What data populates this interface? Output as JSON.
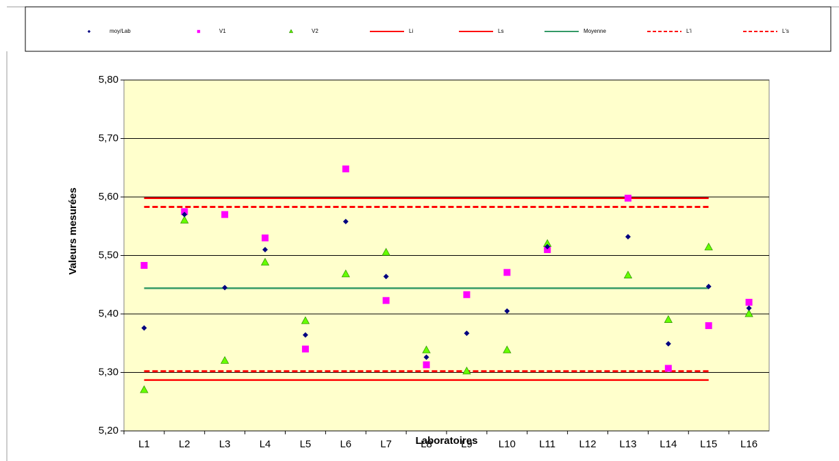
{
  "chart_data": {
    "type": "scatter",
    "x_label": "Laboratoires",
    "y_label": "Valeurs mesurées",
    "categories": [
      "L1",
      "L2",
      "L3",
      "L4",
      "L5",
      "L6",
      "L7",
      "L8",
      "L9",
      "L10",
      "L11",
      "L12",
      "L13",
      "L14",
      "L15",
      "L16"
    ],
    "series": [
      {
        "name": "moy/Lab",
        "color": "#000080",
        "marker": "diamond",
        "values": [
          5.376,
          5.57,
          5.445,
          5.51,
          5.364,
          5.558,
          5.464,
          5.326,
          5.367,
          5.405,
          5.515,
          null,
          5.532,
          5.349,
          5.447,
          5.41
        ]
      },
      {
        "name": "V1",
        "color": "#ff00ff",
        "marker": "square",
        "values": [
          5.483,
          5.575,
          5.57,
          5.53,
          5.34,
          5.648,
          5.423,
          5.313,
          5.433,
          5.471,
          5.51,
          null,
          5.598,
          5.307,
          5.38,
          5.42
        ]
      },
      {
        "name": "V2",
        "color": "#66ff00",
        "marker": "triangle",
        "values": [
          5.27,
          5.56,
          5.32,
          5.488,
          5.388,
          5.468,
          5.505,
          5.338,
          5.302,
          5.338,
          5.52,
          null,
          5.466,
          5.39,
          5.514,
          5.4
        ]
      },
      {
        "name": "Li",
        "color": "#ff0000",
        "marker": "line",
        "values": [
          5.287,
          5.287,
          5.287,
          5.287,
          5.287,
          5.287,
          5.287,
          5.287,
          5.287,
          5.287,
          5.287,
          5.287,
          5.287,
          5.287,
          5.287,
          null
        ]
      },
      {
        "name": "Ls",
        "color": "#ff0000",
        "marker": "line",
        "values": [
          5.598,
          5.598,
          5.598,
          5.598,
          5.598,
          5.598,
          5.598,
          5.598,
          5.598,
          5.598,
          5.598,
          5.598,
          5.598,
          5.598,
          5.598,
          null
        ]
      },
      {
        "name": "Moyenne",
        "color": "#339966",
        "marker": "line",
        "values": [
          5.444,
          5.444,
          5.444,
          5.444,
          5.444,
          5.444,
          5.444,
          5.444,
          5.444,
          5.444,
          5.444,
          5.444,
          5.444,
          5.444,
          5.444,
          null
        ]
      },
      {
        "name": "L'i",
        "color": "#ff0000",
        "marker": "dashed",
        "values": [
          5.302,
          5.302,
          5.302,
          5.302,
          5.302,
          5.302,
          5.302,
          5.302,
          5.302,
          5.302,
          5.302,
          5.302,
          5.302,
          5.302,
          5.302,
          null
        ]
      },
      {
        "name": "L's",
        "color": "#ff0000",
        "marker": "dashed",
        "values": [
          5.583,
          5.583,
          5.583,
          5.583,
          5.583,
          5.583,
          5.583,
          5.583,
          5.583,
          5.583,
          5.583,
          5.583,
          5.583,
          5.583,
          5.583,
          null
        ]
      }
    ],
    "ylim": [
      5.2,
      5.8
    ],
    "yticks": [
      {
        "value": 5.2,
        "label": "5,20"
      },
      {
        "value": 5.3,
        "label": "5,30"
      },
      {
        "value": 5.4,
        "label": "5,40"
      },
      {
        "value": 5.5,
        "label": "5,50"
      },
      {
        "value": 5.6,
        "label": "5,60"
      },
      {
        "value": 5.7,
        "label": "5,70"
      },
      {
        "value": 5.8,
        "label": "5,80"
      }
    ],
    "grid": true,
    "legend": "top",
    "plot_background": "#ffffcc"
  }
}
